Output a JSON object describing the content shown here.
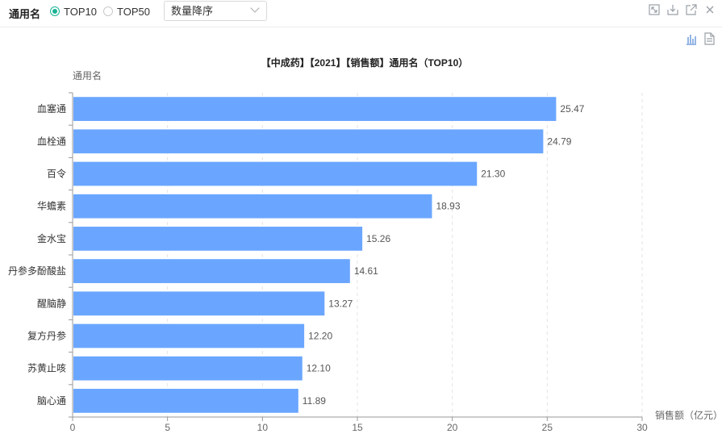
{
  "filter": {
    "label": "通用名",
    "options": [
      {
        "label": "TOP10",
        "checked": true
      },
      {
        "label": "TOP50",
        "checked": false
      }
    ],
    "sort_value": "数量降序"
  },
  "window_icons": [
    "fullscreen-icon",
    "download-icon",
    "open-external-icon",
    "close-icon"
  ],
  "side_icons": [
    "bar-chart-icon",
    "table-view-icon"
  ],
  "colors": {
    "bar": "#6aa6ff",
    "accent": "#1ab394"
  },
  "chart_data": {
    "type": "bar",
    "orientation": "horizontal",
    "title": "【中成药】【2021】【销售额】通用名（TOP10）",
    "ylabel": "通用名",
    "xlabel": "销售额（亿元）",
    "categories": [
      "血塞通",
      "血栓通",
      "百令",
      "华蟾素",
      "金水宝",
      "丹参多酚酸盐",
      "醒脑静",
      "复方丹参",
      "苏黄止咳",
      "脑心通"
    ],
    "values": [
      25.47,
      24.79,
      21.3,
      18.93,
      15.26,
      14.61,
      13.27,
      12.2,
      12.1,
      11.89
    ],
    "value_labels": [
      "25.47",
      "24.79",
      "21.30",
      "18.93",
      "15.26",
      "14.61",
      "13.27",
      "12.20",
      "12.10",
      "11.89"
    ],
    "xlim": [
      0,
      30
    ],
    "xticks": [
      "0",
      "5",
      "10",
      "15",
      "20",
      "25",
      "30"
    ],
    "grid": true
  }
}
